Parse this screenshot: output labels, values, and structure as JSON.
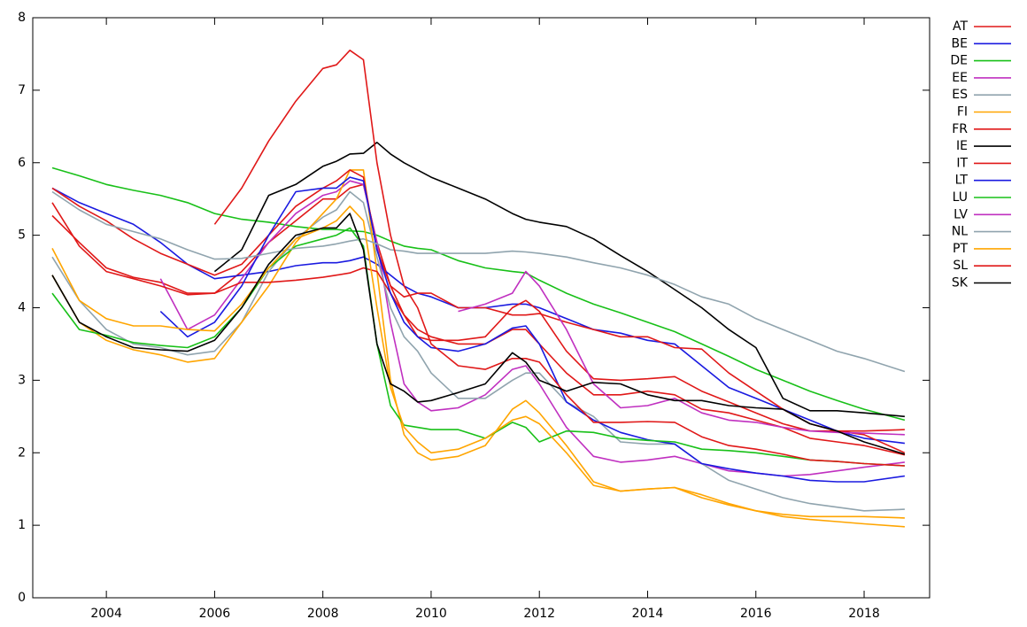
{
  "chart_data": {
    "type": "line",
    "x": [
      2003,
      2003.5,
      2004,
      2004.5,
      2005,
      2005.5,
      2006,
      2006.5,
      2007,
      2007.5,
      2008,
      2008.25,
      2008.5,
      2008.75,
      2009,
      2009.25,
      2009.5,
      2009.75,
      2010,
      2010.5,
      2011,
      2011.5,
      2011.75,
      2012,
      2012.5,
      2013,
      2013.5,
      2014,
      2014.5,
      2015,
      2015.5,
      2016,
      2016.5,
      2017,
      2017.5,
      2018,
      2018.75
    ],
    "xlim": [
      2002.64,
      2019.21
    ],
    "xticks": [
      2004,
      2006,
      2008,
      2010,
      2012,
      2014,
      2016,
      2018
    ],
    "ylim": [
      0,
      8
    ],
    "yticks": [
      0,
      1,
      2,
      3,
      4,
      5,
      6,
      7,
      8
    ],
    "legend": "outside-right",
    "series": [
      {
        "name": "AT",
        "color": "#e01818",
        "values": [
          5.27,
          4.9,
          4.55,
          4.42,
          4.35,
          4.2,
          4.2,
          4.5,
          4.9,
          5.2,
          5.5,
          5.5,
          5.65,
          5.7,
          4.9,
          4.3,
          3.9,
          3.7,
          3.6,
          3.5,
          3.5,
          3.7,
          3.7,
          3.5,
          3.1,
          2.8,
          2.8,
          2.85,
          2.8,
          2.6,
          2.55,
          2.45,
          2.35,
          2.2,
          2.15,
          2.1,
          1.97
        ]
      },
      {
        "name": "BE",
        "color": "#1a1ae0",
        "values": [
          5.65,
          5.45,
          5.3,
          5.15,
          4.9,
          4.6,
          4.4,
          4.45,
          4.5,
          4.58,
          4.62,
          4.62,
          4.65,
          4.7,
          4.6,
          4.45,
          4.3,
          4.2,
          4.15,
          4.0,
          4.0,
          4.05,
          4.05,
          4.0,
          3.85,
          3.7,
          3.65,
          3.55,
          3.5,
          3.2,
          2.9,
          2.75,
          2.6,
          2.45,
          2.3,
          2.2,
          2.13
        ]
      },
      {
        "name": "DE",
        "color": "#18c018",
        "values": [
          5.93,
          5.82,
          5.7,
          5.62,
          5.55,
          5.45,
          5.3,
          5.22,
          5.18,
          5.12,
          5.08,
          5.08,
          5.06,
          5.05,
          5.0,
          4.92,
          4.85,
          4.82,
          4.8,
          4.65,
          4.55,
          4.5,
          4.48,
          4.38,
          4.2,
          4.05,
          3.93,
          3.8,
          3.67,
          3.5,
          3.33,
          3.15,
          3.0,
          2.85,
          2.72,
          2.6,
          2.45
        ]
      },
      {
        "name": "EE",
        "color": "#c030c0",
        "values": [
          null,
          null,
          null,
          null,
          4.4,
          3.7,
          3.9,
          4.4,
          4.9,
          5.3,
          5.55,
          5.6,
          5.75,
          5.7,
          4.9,
          3.8,
          2.95,
          2.7,
          2.58,
          2.62,
          2.8,
          3.15,
          3.2,
          2.95,
          2.35,
          1.95,
          1.87,
          1.9,
          1.95,
          1.85,
          1.75,
          1.72,
          1.68,
          1.7,
          1.75,
          1.8,
          1.87
        ]
      },
      {
        "name": "ES",
        "color": "#90a4ae",
        "values": [
          4.7,
          4.1,
          3.7,
          3.5,
          3.45,
          3.35,
          3.4,
          3.8,
          4.5,
          4.95,
          5.25,
          5.35,
          5.6,
          5.45,
          4.7,
          4.0,
          3.6,
          3.4,
          3.1,
          2.75,
          2.75,
          3.0,
          3.1,
          3.1,
          2.7,
          2.5,
          2.15,
          2.12,
          2.12,
          1.85,
          1.62,
          1.5,
          1.38,
          1.3,
          1.25,
          1.2,
          1.22
        ]
      },
      {
        "name": "FI",
        "color": "#ffa500",
        "values": [
          4.45,
          3.8,
          3.55,
          3.42,
          3.35,
          3.25,
          3.3,
          3.8,
          4.3,
          4.9,
          5.3,
          5.5,
          5.9,
          5.9,
          4.5,
          3.0,
          2.25,
          2.0,
          1.9,
          1.95,
          2.1,
          2.6,
          2.72,
          2.55,
          2.1,
          1.6,
          1.47,
          1.5,
          1.52,
          1.38,
          1.28,
          1.2,
          1.15,
          1.12,
          1.12,
          1.12,
          1.1
        ]
      },
      {
        "name": "FR",
        "color": "#e01818",
        "values": [
          5.45,
          4.85,
          4.5,
          4.4,
          4.3,
          4.18,
          4.2,
          4.35,
          4.35,
          4.38,
          4.42,
          4.45,
          4.48,
          4.55,
          4.5,
          4.2,
          3.9,
          3.6,
          3.55,
          3.55,
          3.6,
          4.0,
          4.1,
          3.95,
          3.4,
          3.02,
          3.0,
          3.02,
          3.05,
          2.85,
          2.7,
          2.55,
          2.4,
          2.3,
          2.3,
          2.3,
          2.32
        ]
      },
      {
        "name": "IE",
        "color": "#000000",
        "values": [
          null,
          null,
          null,
          null,
          null,
          null,
          4.5,
          4.8,
          5.55,
          5.7,
          5.95,
          6.02,
          6.12,
          6.13,
          6.28,
          6.12,
          6.0,
          5.9,
          5.8,
          5.65,
          5.5,
          5.3,
          5.22,
          5.18,
          5.12,
          4.95,
          4.72,
          4.5,
          4.25,
          4.0,
          3.7,
          3.45,
          2.75,
          2.58,
          2.58,
          2.55,
          2.5
        ]
      },
      {
        "name": "IT",
        "color": "#e01818",
        "values": [
          5.65,
          5.4,
          5.2,
          4.95,
          4.75,
          4.6,
          4.45,
          4.6,
          5.0,
          5.4,
          5.65,
          5.75,
          5.9,
          5.8,
          4.8,
          4.3,
          4.15,
          4.2,
          4.2,
          4.0,
          4.0,
          3.9,
          3.9,
          3.92,
          3.8,
          3.7,
          3.6,
          3.6,
          3.45,
          3.43,
          3.1,
          2.85,
          2.6,
          2.4,
          2.3,
          2.25,
          2.0
        ]
      },
      {
        "name": "LT",
        "color": "#1a1ae0",
        "values": [
          null,
          null,
          null,
          null,
          3.95,
          3.6,
          3.8,
          4.3,
          5.0,
          5.6,
          5.65,
          5.65,
          5.8,
          5.75,
          4.8,
          4.2,
          3.8,
          3.6,
          3.45,
          3.4,
          3.5,
          3.72,
          3.75,
          3.5,
          2.7,
          2.45,
          2.28,
          2.18,
          2.12,
          1.85,
          1.78,
          1.72,
          1.68,
          1.62,
          1.6,
          1.6,
          1.68
        ]
      },
      {
        "name": "LU",
        "color": "#18c018",
        "values": [
          4.2,
          3.7,
          3.62,
          3.52,
          3.48,
          3.45,
          3.6,
          4.0,
          4.55,
          4.85,
          4.95,
          5.0,
          5.1,
          4.85,
          3.5,
          2.65,
          2.38,
          2.35,
          2.32,
          2.32,
          2.2,
          2.42,
          2.35,
          2.15,
          2.3,
          2.28,
          2.2,
          2.17,
          2.15,
          2.05,
          2.03,
          2.0,
          1.95,
          1.9,
          1.88,
          1.85,
          1.82
        ]
      },
      {
        "name": "LV",
        "color": "#c030c0",
        "values": [
          null,
          null,
          null,
          null,
          null,
          null,
          null,
          null,
          null,
          null,
          null,
          null,
          null,
          null,
          null,
          null,
          null,
          null,
          null,
          3.95,
          4.05,
          4.2,
          4.5,
          4.3,
          3.7,
          2.95,
          2.62,
          2.65,
          2.75,
          2.55,
          2.45,
          2.42,
          2.35,
          2.3,
          2.28,
          2.27,
          2.25
        ]
      },
      {
        "name": "NL",
        "color": "#90a4ae",
        "values": [
          5.6,
          5.35,
          5.15,
          5.05,
          4.95,
          4.8,
          4.67,
          4.68,
          4.75,
          4.82,
          4.85,
          4.88,
          4.92,
          4.95,
          4.88,
          4.8,
          4.78,
          4.75,
          4.75,
          4.75,
          4.75,
          4.78,
          4.77,
          4.75,
          4.7,
          4.62,
          4.55,
          4.45,
          4.32,
          4.15,
          4.05,
          3.85,
          3.7,
          3.55,
          3.4,
          3.3,
          3.12
        ]
      },
      {
        "name": "PT",
        "color": "#ffa500",
        "values": [
          4.82,
          4.1,
          3.85,
          3.75,
          3.75,
          3.7,
          3.68,
          4.05,
          4.55,
          4.95,
          5.1,
          5.2,
          5.4,
          5.2,
          4.0,
          2.9,
          2.35,
          2.15,
          2.0,
          2.05,
          2.2,
          2.45,
          2.5,
          2.4,
          2.0,
          1.55,
          1.47,
          1.5,
          1.52,
          1.42,
          1.3,
          1.2,
          1.12,
          1.08,
          1.05,
          1.02,
          0.98
        ]
      },
      {
        "name": "SL",
        "color": "#e01818",
        "values": [
          null,
          null,
          null,
          null,
          null,
          null,
          5.15,
          5.65,
          6.3,
          6.85,
          7.3,
          7.35,
          7.55,
          7.42,
          6.0,
          5.0,
          4.3,
          4.0,
          3.5,
          3.2,
          3.15,
          3.3,
          3.3,
          3.25,
          2.8,
          2.42,
          2.42,
          2.43,
          2.42,
          2.22,
          2.1,
          2.05,
          1.98,
          1.9,
          1.88,
          1.85,
          1.82
        ]
      },
      {
        "name": "SK",
        "color": "#000000",
        "values": [
          4.45,
          3.8,
          3.6,
          3.45,
          3.42,
          3.4,
          3.55,
          4.0,
          4.6,
          5.0,
          5.1,
          5.1,
          5.3,
          4.8,
          3.5,
          2.95,
          2.85,
          2.7,
          2.72,
          2.83,
          2.95,
          3.38,
          3.25,
          3.0,
          2.85,
          2.97,
          2.95,
          2.8,
          2.72,
          2.72,
          2.65,
          2.62,
          2.6,
          2.4,
          2.3,
          2.15,
          1.98
        ]
      }
    ]
  }
}
